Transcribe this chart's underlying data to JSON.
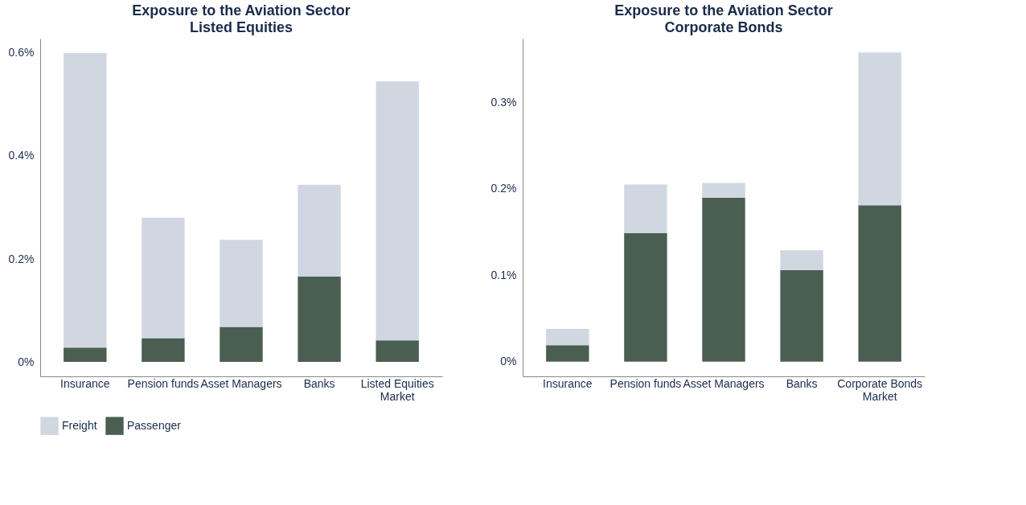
{
  "chart_data": [
    {
      "type": "bar",
      "stacked": true,
      "title": "Exposure to the Aviation Sector",
      "subtitle": "Listed Equities",
      "categories": [
        "Insurance",
        "Pension funds",
        "Asset Managers",
        "Banks",
        "Listed Equities Market"
      ],
      "series": [
        {
          "name": "Passenger",
          "color": "#4a5e52",
          "values": [
            0.028,
            0.046,
            0.068,
            0.166,
            0.042
          ]
        },
        {
          "name": "Freight",
          "color": "#d0d7e1",
          "values": [
            0.572,
            0.234,
            0.169,
            0.178,
            0.503
          ]
        }
      ],
      "ylim": [
        -0.028,
        0.628
      ],
      "yticks": [
        {
          "value": 0,
          "label": "0%"
        },
        {
          "value": 0.2,
          "label": "0.2%"
        },
        {
          "value": 0.4,
          "label": "0.4%"
        },
        {
          "value": 0.6,
          "label": "0.6%"
        }
      ],
      "grid": false,
      "legend": "bottom"
    },
    {
      "type": "bar",
      "stacked": true,
      "title": "Exposure to the Aviation Sector",
      "subtitle": "Corporate Bonds",
      "categories": [
        "Insurance",
        "Pension funds",
        "Asset Managers",
        "Banks",
        "Corporate Bonds Market"
      ],
      "series": [
        {
          "color": "#4a5e52",
          "values": [
            0.019,
            0.149,
            0.19,
            0.106,
            0.181
          ]
        },
        {
          "color": "#d0d7e1",
          "values": [
            0.019,
            0.056,
            0.017,
            0.023,
            0.177
          ]
        }
      ],
      "ylim": [
        -0.017,
        0.374
      ],
      "yticks": [
        {
          "value": 0,
          "label": "0%"
        },
        {
          "value": 0.1,
          "label": "0.1%"
        },
        {
          "value": 0.2,
          "label": "0.2%"
        },
        {
          "value": 0.3,
          "label": "0.3%"
        }
      ],
      "grid": false
    }
  ]
}
